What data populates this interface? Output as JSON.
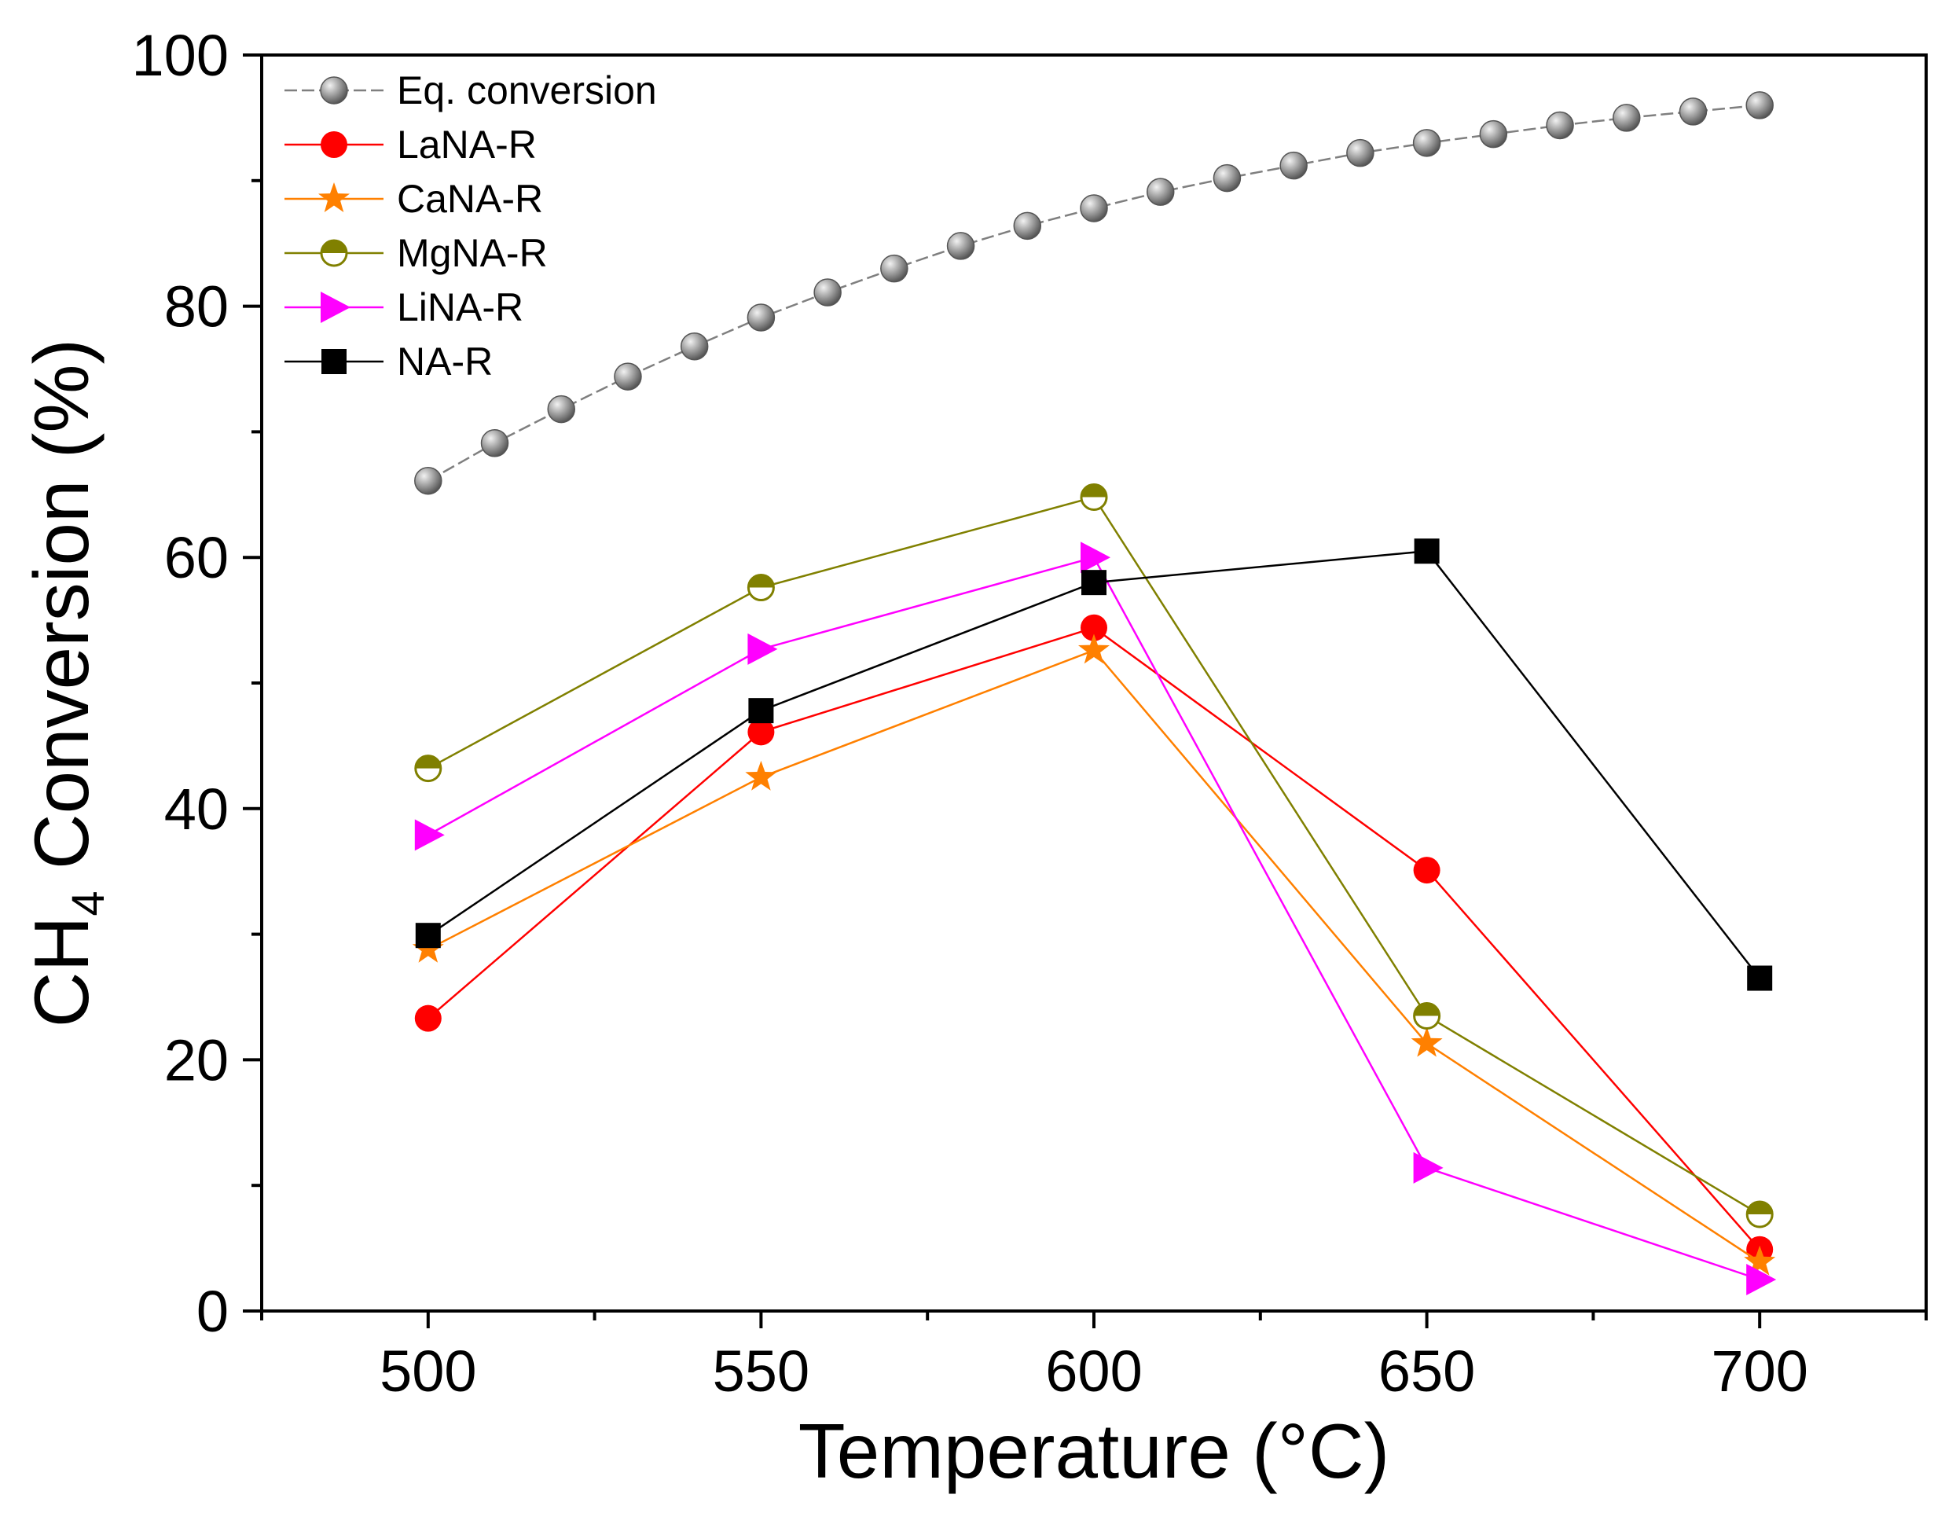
{
  "chart_data": {
    "type": "line",
    "xlabel": "Temperature (°C)",
    "ylabel_main": "CH",
    "ylabel_sub": "4",
    "ylabel_rest": " Conversion (%)",
    "xlim": [
      475,
      725
    ],
    "ylim": [
      0,
      100
    ],
    "xticks": [
      500,
      550,
      600,
      650,
      700
    ],
    "yticks": [
      0,
      20,
      40,
      60,
      80,
      100
    ],
    "legend_position": "top-left",
    "series": [
      {
        "name": "Eq. conversion",
        "color": "#7f7f7f",
        "marker": "sphere",
        "dashed": true,
        "x": [
          500,
          510,
          520,
          530,
          540,
          550,
          560,
          570,
          580,
          590,
          600,
          610,
          620,
          630,
          640,
          650,
          660,
          670,
          680,
          690,
          700
        ],
        "y": [
          66.1,
          69.1,
          71.8,
          74.4,
          76.8,
          79.1,
          81.1,
          83.0,
          84.8,
          86.4,
          87.8,
          89.1,
          90.2,
          91.2,
          92.2,
          93.0,
          93.7,
          94.4,
          95.0,
          95.5,
          96.0
        ]
      },
      {
        "name": "LaNA-R",
        "color": "#ff0000",
        "marker": "circle",
        "x": [
          500,
          550,
          600,
          650,
          700
        ],
        "y": [
          23.3,
          46.1,
          54.4,
          35.1,
          4.9
        ]
      },
      {
        "name": "CaNA-R",
        "color": "#ff8000",
        "marker": "star",
        "x": [
          500,
          550,
          600,
          650,
          700
        ],
        "y": [
          28.8,
          42.5,
          52.6,
          21.3,
          3.9
        ]
      },
      {
        "name": "MgNA-R",
        "color": "#808000",
        "marker": "half-circle",
        "x": [
          500,
          550,
          600,
          650,
          700
        ],
        "y": [
          43.2,
          57.6,
          64.8,
          23.5,
          7.7
        ]
      },
      {
        "name": "LiNA-R",
        "color": "#ff00ff",
        "marker": "triangle-right",
        "x": [
          500,
          550,
          600,
          650,
          700
        ],
        "y": [
          37.9,
          52.7,
          60.0,
          11.4,
          2.5
        ]
      },
      {
        "name": "NA-R",
        "color": "#000000",
        "marker": "square",
        "x": [
          500,
          550,
          600,
          650,
          700
        ],
        "y": [
          29.9,
          47.8,
          58.0,
          60.5,
          26.5
        ]
      }
    ]
  }
}
